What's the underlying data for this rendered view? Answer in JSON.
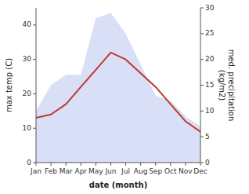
{
  "chart_data": {
    "type": "line",
    "xlabel": "date (month)",
    "ylabel": "max temp (C)",
    "y2label": "med. precipitation\n(kg/m2)",
    "categories": [
      "Jan",
      "Feb",
      "Mar",
      "Apr",
      "May",
      "Jun",
      "Jul",
      "Aug",
      "Sep",
      "Oct",
      "Nov",
      "Dec"
    ],
    "series": [
      {
        "type": "line",
        "color": "#c0392b",
        "values": [
          13,
          14,
          17,
          22,
          27,
          32,
          30,
          26,
          22,
          17,
          12,
          9
        ]
      },
      {
        "type": "area",
        "axis": "y2",
        "color": "#b8c4ee",
        "values": [
          10,
          15,
          17,
          17,
          28,
          29,
          25,
          19,
          13,
          12,
          9,
          7
        ]
      }
    ],
    "ylim": [
      0,
      45
    ],
    "yticks": [
      0,
      10,
      20,
      30,
      40
    ],
    "y2lim": [
      0,
      30
    ],
    "y2ticks": [
      0,
      5,
      10,
      15,
      20,
      25,
      30
    ],
    "grid": false
  }
}
